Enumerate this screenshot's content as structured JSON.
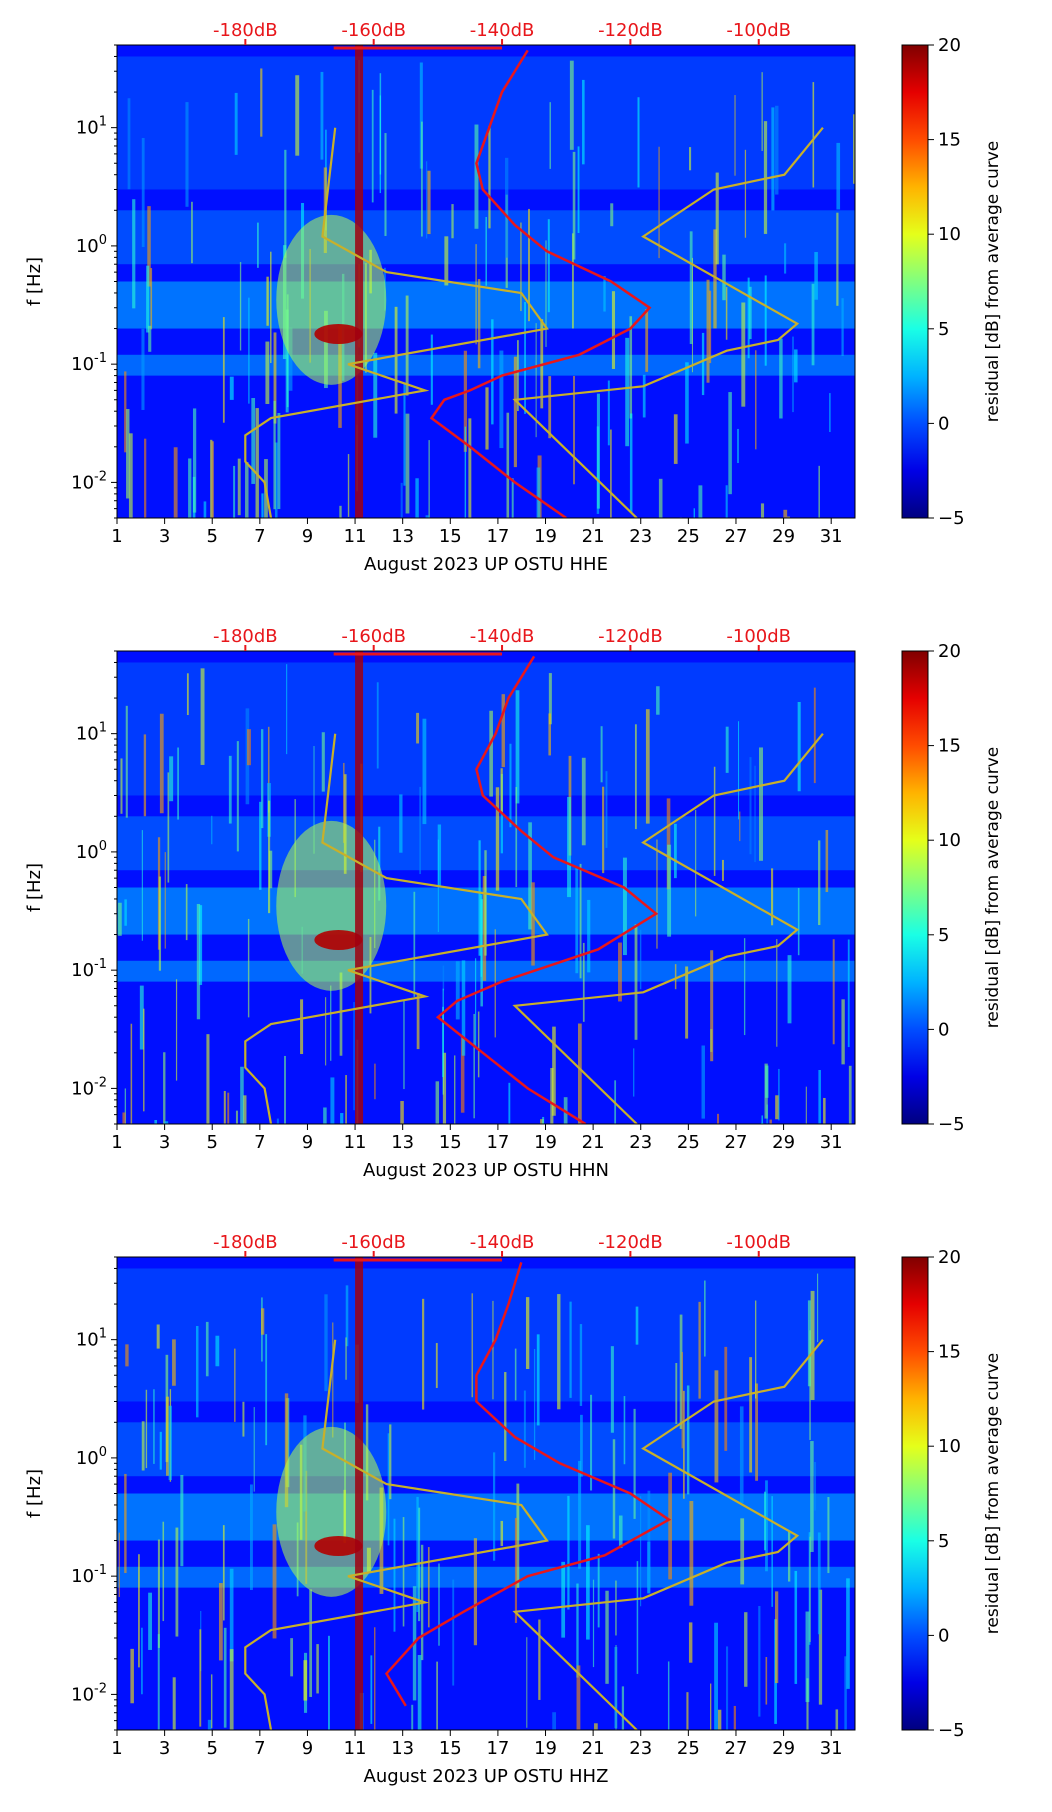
{
  "figure": {
    "xticks": [
      "1",
      "3",
      "5",
      "7",
      "9",
      "11",
      "13",
      "15",
      "17",
      "19",
      "21",
      "23",
      "25",
      "27",
      "29",
      "31"
    ],
    "yticks": [
      "10^{-2}",
      "10^{-1}",
      "10^{0}",
      "10^{1}"
    ],
    "ylabel": "f [Hz]",
    "top_ticks": [
      "-180dB",
      "-160dB",
      "-140dB",
      "-120dB",
      "-100dB"
    ],
    "colorbar": {
      "label": "residual [dB] from average curve",
      "ticks": [
        "20",
        "15",
        "10",
        "5",
        "0",
        "−5"
      ]
    },
    "colors": {
      "psd_curve": "#e8161b",
      "noise_model": "#c8b02a",
      "top_axis_text": "#e8161b"
    }
  },
  "chart_data": [
    {
      "type": "heatmap",
      "title": "",
      "xlabel": "August 2023 UP OSTU  HHE",
      "ylabel": "f [Hz]",
      "xlim": [
        1,
        32
      ],
      "ylim_hz": [
        0.005,
        50
      ],
      "y_scale": "log",
      "clim_db": [
        -5,
        20
      ],
      "colormap": "jet",
      "top_axis": {
        "label_values_db": [
          -180,
          -160,
          -140,
          -120,
          -100
        ]
      },
      "series": [
        {
          "kind": "psd_curve_top_axis",
          "color": "#e8161b",
          "points_db_hz": [
            [
              -130,
              0.005
            ],
            [
              -138,
              0.01
            ],
            [
              -145,
              0.02
            ],
            [
              -151,
              0.035
            ],
            [
              -149,
              0.05
            ],
            [
              -145,
              0.06
            ],
            [
              -140,
              0.08
            ],
            [
              -128,
              0.12
            ],
            [
              -120,
              0.2
            ],
            [
              -117,
              0.3
            ],
            [
              -123,
              0.5
            ],
            [
              -133,
              0.9
            ],
            [
              -138,
              1.5
            ],
            [
              -143,
              3
            ],
            [
              -144,
              5
            ],
            [
              -142,
              10
            ],
            [
              -140,
              20
            ],
            [
              -136,
              45
            ]
          ]
        },
        {
          "kind": "noise_model_top_axis",
          "color": "#c8b02a",
          "points_db_hz": [
            [
              -176,
              0.005
            ],
            [
              -177,
              0.01
            ],
            [
              -180,
              0.015
            ],
            [
              -180,
              0.025
            ],
            [
              -176,
              0.035
            ],
            [
              -152,
              0.06
            ],
            [
              -164,
              0.1
            ],
            [
              -133,
              0.2
            ],
            [
              -137,
              0.4
            ],
            [
              -158,
              0.6
            ],
            [
              -168,
              1.2
            ],
            [
              -166,
              10
            ]
          ]
        },
        {
          "kind": "noise_model_top_axis",
          "color": "#c8b02a",
          "points_db_hz": [
            [
              -119,
              0.005
            ],
            [
              -138,
              0.05
            ],
            [
              -118,
              0.065
            ],
            [
              -105,
              0.13
            ],
            [
              -97,
              0.16
            ],
            [
              -94,
              0.22
            ],
            [
              -118,
              1.2
            ],
            [
              -107,
              3
            ],
            [
              -96,
              4
            ],
            [
              -90,
              10
            ]
          ]
        }
      ]
    },
    {
      "type": "heatmap",
      "title": "",
      "xlabel": "August 2023 UP OSTU  HHN",
      "ylabel": "f [Hz]",
      "xlim": [
        1,
        32
      ],
      "ylim_hz": [
        0.005,
        50
      ],
      "y_scale": "log",
      "clim_db": [
        -5,
        20
      ],
      "colormap": "jet",
      "top_axis": {
        "label_values_db": [
          -180,
          -160,
          -140,
          -120,
          -100
        ]
      },
      "series": [
        {
          "kind": "psd_curve_top_axis",
          "color": "#e8161b",
          "points_db_hz": [
            [
              -127,
              0.005
            ],
            [
              -136,
              0.01
            ],
            [
              -143,
              0.02
            ],
            [
              -150,
              0.04
            ],
            [
              -147,
              0.055
            ],
            [
              -140,
              0.08
            ],
            [
              -125,
              0.15
            ],
            [
              -116,
              0.3
            ],
            [
              -121,
              0.5
            ],
            [
              -132,
              0.9
            ],
            [
              -137,
              1.5
            ],
            [
              -143,
              3
            ],
            [
              -144,
              5
            ],
            [
              -141,
              10
            ],
            [
              -139,
              20
            ],
            [
              -135,
              45
            ]
          ]
        },
        {
          "kind": "noise_model_top_axis",
          "color": "#c8b02a",
          "points_db_hz": [
            [
              -176,
              0.005
            ],
            [
              -177,
              0.01
            ],
            [
              -180,
              0.015
            ],
            [
              -180,
              0.025
            ],
            [
              -176,
              0.035
            ],
            [
              -152,
              0.06
            ],
            [
              -164,
              0.1
            ],
            [
              -133,
              0.2
            ],
            [
              -137,
              0.4
            ],
            [
              -158,
              0.6
            ],
            [
              -168,
              1.2
            ],
            [
              -166,
              10
            ]
          ]
        },
        {
          "kind": "noise_model_top_axis",
          "color": "#c8b02a",
          "points_db_hz": [
            [
              -119,
              0.005
            ],
            [
              -138,
              0.05
            ],
            [
              -118,
              0.065
            ],
            [
              -105,
              0.13
            ],
            [
              -97,
              0.16
            ],
            [
              -94,
              0.22
            ],
            [
              -118,
              1.2
            ],
            [
              -107,
              3
            ],
            [
              -96,
              4
            ],
            [
              -90,
              10
            ]
          ]
        }
      ]
    },
    {
      "type": "heatmap",
      "title": "",
      "xlabel": "August 2023 UP OSTU  HHZ",
      "ylabel": "f [Hz]",
      "xlim": [
        1,
        32
      ],
      "ylim_hz": [
        0.005,
        50
      ],
      "y_scale": "log",
      "clim_db": [
        -5,
        20
      ],
      "colormap": "jet",
      "top_axis": {
        "label_values_db": [
          -180,
          -160,
          -140,
          -120,
          -100
        ]
      },
      "series": [
        {
          "kind": "psd_curve_top_axis",
          "color": "#e8161b",
          "points_db_hz": [
            [
              -155,
              0.008
            ],
            [
              -158,
              0.015
            ],
            [
              -153,
              0.03
            ],
            [
              -146,
              0.05
            ],
            [
              -136,
              0.1
            ],
            [
              -124,
              0.15
            ],
            [
              -114,
              0.3
            ],
            [
              -120,
              0.5
            ],
            [
              -131,
              0.9
            ],
            [
              -138,
              1.5
            ],
            [
              -144,
              3
            ],
            [
              -144,
              5
            ],
            [
              -141,
              10
            ],
            [
              -139,
              20
            ],
            [
              -137,
              45
            ]
          ]
        },
        {
          "kind": "noise_model_top_axis",
          "color": "#c8b02a",
          "points_db_hz": [
            [
              -176,
              0.005
            ],
            [
              -177,
              0.01
            ],
            [
              -180,
              0.015
            ],
            [
              -180,
              0.025
            ],
            [
              -176,
              0.035
            ],
            [
              -152,
              0.06
            ],
            [
              -164,
              0.1
            ],
            [
              -133,
              0.2
            ],
            [
              -137,
              0.4
            ],
            [
              -158,
              0.6
            ],
            [
              -168,
              1.2
            ],
            [
              -166,
              10
            ]
          ]
        },
        {
          "kind": "noise_model_top_axis",
          "color": "#c8b02a",
          "points_db_hz": [
            [
              -119,
              0.005
            ],
            [
              -138,
              0.05
            ],
            [
              -118,
              0.065
            ],
            [
              -105,
              0.13
            ],
            [
              -97,
              0.16
            ],
            [
              -94,
              0.22
            ],
            [
              -118,
              1.2
            ],
            [
              -107,
              3
            ],
            [
              -96,
              4
            ],
            [
              -90,
              10
            ]
          ]
        }
      ]
    }
  ]
}
